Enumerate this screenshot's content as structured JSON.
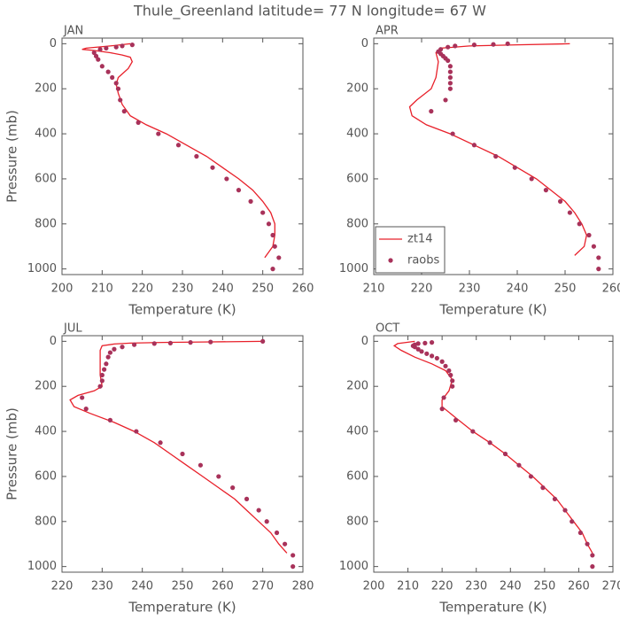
{
  "title": "Thule_Greenland  latitude= 77 N longitude= 67 W",
  "chart_data": [
    {
      "type": "line",
      "title": "JAN",
      "xlabel": "Temperature (K)",
      "ylabel": "Pressure (mb)",
      "xlim": [
        200,
        260
      ],
      "xticks": [
        200,
        210,
        220,
        230,
        240,
        250,
        260
      ],
      "ylim": [
        1025,
        -25
      ],
      "yticks": [
        0,
        200,
        400,
        600,
        800,
        1000
      ],
      "series": [
        {
          "mode": "lines",
          "color": "#e8202a",
          "x": [
            217,
            212,
            206,
            205,
            208,
            212,
            215,
            217,
            217.5,
            216.5,
            214,
            213.5,
            214,
            215,
            217,
            221,
            226,
            231,
            236,
            240,
            244,
            247.5,
            250,
            252,
            253,
            253,
            252.5,
            250.5
          ],
          "values": [
            0,
            10,
            20,
            25,
            30,
            40,
            50,
            60,
            80,
            110,
            150,
            180,
            220,
            270,
            320,
            360,
            400,
            450,
            500,
            550,
            600,
            650,
            700,
            750,
            800,
            850,
            900,
            950
          ]
        },
        {
          "mode": "markers",
          "color": "#a8325a",
          "x": [
            217.5,
            215,
            213.5,
            211,
            209.5,
            208,
            208.5,
            209,
            210,
            211.5,
            212.5,
            213.5,
            214,
            214.5,
            215.5,
            219,
            224,
            229,
            233.5,
            237.5,
            241,
            244,
            247,
            250,
            251.5,
            252.5,
            253,
            254,
            252.5
          ],
          "values": [
            5,
            10,
            15,
            20,
            25,
            40,
            55,
            70,
            100,
            125,
            150,
            175,
            200,
            250,
            300,
            350,
            400,
            450,
            500,
            550,
            600,
            650,
            700,
            750,
            800,
            850,
            900,
            950,
            1000
          ]
        }
      ]
    },
    {
      "type": "line",
      "title": "APR",
      "xlabel": "Temperature (K)",
      "legend": "lower left",
      "xlim": [
        210,
        260
      ],
      "xticks": [
        210,
        220,
        230,
        240,
        250,
        260
      ],
      "ylim": [
        1025,
        -25
      ],
      "yticks": [
        0,
        200,
        400,
        600,
        800,
        1000
      ],
      "series": [
        {
          "name": "zt14",
          "mode": "lines",
          "color": "#e8202a",
          "x": [
            251,
            240,
            230,
            224,
            223,
            223.5,
            223,
            222,
            219,
            217.5,
            218,
            221,
            226,
            231,
            236,
            240,
            244,
            247,
            250,
            252,
            253.5,
            254.5,
            254,
            252
          ],
          "values": [
            0,
            5,
            10,
            20,
            40,
            80,
            150,
            200,
            250,
            280,
            320,
            360,
            400,
            450,
            500,
            550,
            600,
            650,
            700,
            750,
            800,
            850,
            900,
            940
          ]
        },
        {
          "name": "raobs",
          "mode": "markers",
          "color": "#a8325a",
          "x": [
            238,
            235,
            231,
            227,
            225.5,
            224,
            223.5,
            224,
            224.5,
            225,
            225.5,
            226,
            226,
            226,
            226,
            226,
            225,
            222,
            226.5,
            231,
            235.5,
            239.5,
            243,
            246,
            249,
            251,
            253,
            255,
            256,
            257,
            257
          ],
          "values": [
            0,
            3,
            5,
            10,
            15,
            25,
            35,
            45,
            55,
            65,
            75,
            100,
            125,
            150,
            175,
            200,
            250,
            300,
            400,
            450,
            500,
            550,
            600,
            650,
            700,
            750,
            800,
            850,
            900,
            950,
            1000
          ]
        }
      ]
    },
    {
      "type": "line",
      "title": "JUL",
      "xlabel": "Temperature (K)",
      "ylabel": "Pressure (mb)",
      "xlim": [
        220,
        280
      ],
      "xticks": [
        220,
        230,
        240,
        250,
        260,
        270,
        280
      ],
      "ylim": [
        1025,
        -25
      ],
      "yticks": [
        0,
        200,
        400,
        600,
        800,
        1000
      ],
      "series": [
        {
          "mode": "lines",
          "color": "#e8202a",
          "x": [
            270,
            255,
            245,
            237,
            233,
            230,
            229.5,
            229.5,
            229.5,
            230,
            228,
            224,
            222,
            223,
            227,
            233,
            238,
            243,
            247,
            251,
            255,
            259,
            263,
            266,
            269,
            272,
            274,
            276
          ],
          "values": [
            0,
            3,
            5,
            8,
            12,
            20,
            40,
            100,
            150,
            200,
            220,
            240,
            260,
            290,
            320,
            360,
            400,
            450,
            500,
            550,
            600,
            650,
            700,
            750,
            800,
            850,
            900,
            940
          ]
        },
        {
          "mode": "markers",
          "color": "#a8325a",
          "x": [
            270,
            257,
            252,
            247,
            243,
            238,
            235,
            233,
            232,
            231.5,
            231,
            230.5,
            230,
            230,
            229.5,
            225,
            226,
            232,
            238.5,
            244.5,
            250,
            254.5,
            259,
            262.5,
            266,
            269,
            271,
            273.5,
            275.5,
            277.5,
            277.5
          ],
          "values": [
            0,
            3,
            5,
            8,
            10,
            15,
            25,
            35,
            50,
            70,
            100,
            125,
            150,
            175,
            200,
            250,
            300,
            350,
            400,
            450,
            500,
            550,
            600,
            650,
            700,
            750,
            800,
            850,
            900,
            950,
            1000
          ]
        }
      ]
    },
    {
      "type": "line",
      "title": "OCT",
      "xlabel": "Temperature (K)",
      "xlim": [
        200,
        270
      ],
      "xticks": [
        200,
        210,
        220,
        230,
        240,
        250,
        260,
        270
      ],
      "ylim": [
        1025,
        -25
      ],
      "yticks": [
        0,
        200,
        400,
        600,
        800,
        1000
      ],
      "series": [
        {
          "mode": "lines",
          "color": "#e8202a",
          "x": [
            212,
            207,
            206,
            208,
            212,
            217,
            221,
            223,
            222,
            220,
            220,
            224,
            229,
            234,
            238.5,
            242.5,
            246.5,
            250,
            253.5,
            256,
            258.5,
            261,
            262.5,
            264
          ],
          "values": [
            0,
            10,
            20,
            40,
            70,
            100,
            130,
            170,
            220,
            260,
            290,
            340,
            400,
            450,
            500,
            550,
            600,
            650,
            700,
            750,
            800,
            850,
            900,
            940
          ]
        },
        {
          "mode": "markers",
          "color": "#a8325a",
          "x": [
            217,
            215,
            213,
            212,
            211.5,
            212,
            213,
            214,
            215.5,
            217,
            218.5,
            220,
            221,
            222,
            222.5,
            223,
            223,
            220.5,
            220,
            224,
            229,
            234,
            238.5,
            242.5,
            246,
            249.5,
            253,
            256,
            258,
            260.5,
            262.5,
            264,
            264
          ],
          "values": [
            5,
            8,
            10,
            15,
            20,
            25,
            35,
            45,
            55,
            65,
            75,
            90,
            110,
            130,
            150,
            175,
            200,
            250,
            300,
            350,
            400,
            450,
            500,
            550,
            600,
            650,
            700,
            750,
            800,
            850,
            900,
            950,
            1000
          ]
        }
      ]
    }
  ]
}
